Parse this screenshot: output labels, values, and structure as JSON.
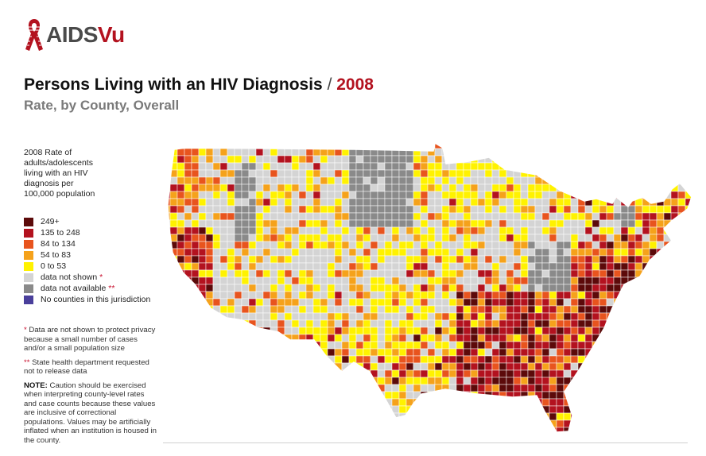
{
  "logo": {
    "text_a": "AIDS",
    "text_b": "Vu",
    "icon": "red-ribbon-icon"
  },
  "title": {
    "main": "Persons Living with an HIV Diagnosis",
    "separator": " / ",
    "year": "2008",
    "subtitle": "Rate, by County, Overall"
  },
  "legend": {
    "heading": "2008 Rate of\nadults/adolescents\nliving with an HIV\ndiagnosis per\n100,000 population",
    "items": [
      {
        "label": "249+",
        "color": "#5c0a0a"
      },
      {
        "label": "135 to 248",
        "color": "#b3121f"
      },
      {
        "label": "84 to 134",
        "color": "#e8541e"
      },
      {
        "label": "54 to 83",
        "color": "#f5a21b"
      },
      {
        "label": "0 to 53",
        "color": "#fff200"
      },
      {
        "label": "data not shown",
        "color": "#d4d4d4",
        "star": "*"
      },
      {
        "label": "data not available",
        "color": "#8a8a8a",
        "star": "**"
      },
      {
        "label": "No counties in this jurisdiction",
        "color": "#4a3f9b"
      }
    ]
  },
  "notes": {
    "n1_star": "*",
    "n1": " Data are not shown to protect privacy because a small number of cases and/or a small population size",
    "n2_star": "**",
    "n2": " State health department requested not to release data",
    "n3_label": "NOTE:",
    "n3": " Caution should be exercised when interpreting county-level rates and case counts because these values are inclusive of correctional populations. Values may be artificially inflated when an institution is housed in the county."
  }
}
